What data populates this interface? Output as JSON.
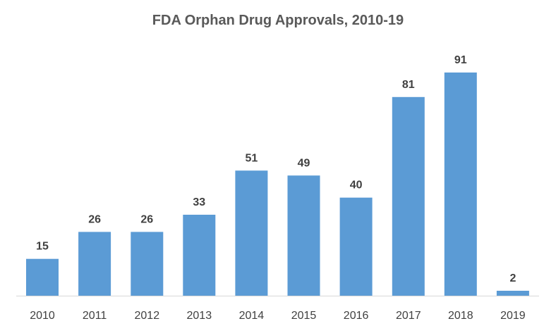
{
  "chart_data": {
    "type": "bar",
    "title": "FDA Orphan Drug Approvals, 2010-19",
    "xlabel": "",
    "ylabel": "",
    "categories": [
      "2010",
      "2011",
      "2012",
      "2013",
      "2014",
      "2015",
      "2016",
      "2017",
      "2018",
      "2019"
    ],
    "values": [
      15,
      26,
      26,
      33,
      51,
      49,
      40,
      81,
      91,
      2
    ],
    "data_labels": [
      "15",
      "26",
      "26",
      "33",
      "51",
      "49",
      "40",
      "81",
      "91",
      "2"
    ],
    "ylim": [
      0,
      91
    ],
    "grid": false,
    "legend": "none",
    "bar_color": "#5B9BD5",
    "axis_color": "#D9D9D9"
  }
}
